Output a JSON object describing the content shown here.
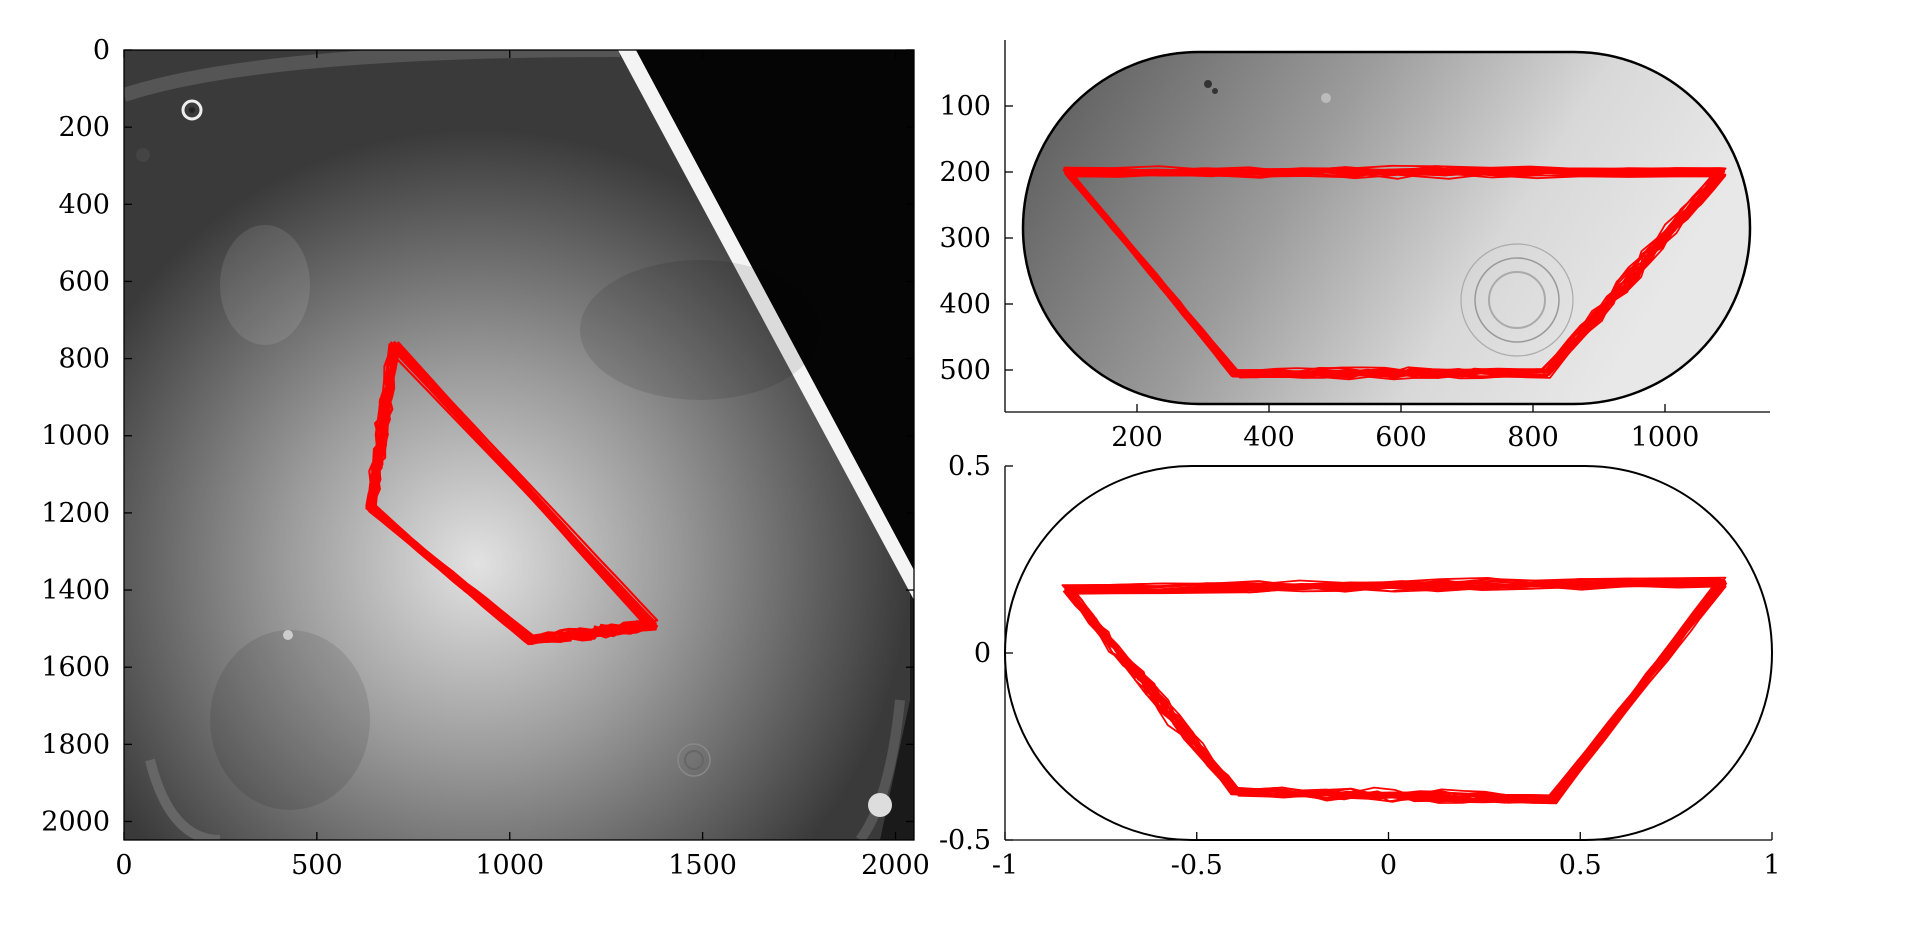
{
  "chart_data": [
    {
      "id": "left",
      "type": "image-with-trajectory",
      "xlim": [
        0,
        2048
      ],
      "ylim": [
        0,
        2048
      ],
      "y_inverted": true,
      "xticks": [
        0,
        500,
        1000,
        1500,
        2000
      ],
      "xtick_labels": [
        "0",
        "500",
        "1000",
        "1500",
        "2000"
      ],
      "yticks": [
        0,
        200,
        400,
        600,
        800,
        1000,
        1200,
        1400,
        1600,
        1800,
        2000
      ],
      "ytick_labels": [
        "0",
        "200",
        "400",
        "600",
        "800",
        "1000",
        "1200",
        "1400",
        "1600",
        "1800",
        "2000"
      ],
      "trajectory_color": "#ff0000",
      "trajectory_vertices": [
        [
          700,
          770
        ],
        [
          1370,
          1490
        ],
        [
          1050,
          1530
        ],
        [
          640,
          1190
        ]
      ],
      "loops": 22,
      "background": "grayscale camera frame of tilted stadium-shaped bath"
    },
    {
      "id": "top-right",
      "type": "image-with-trajectory",
      "xlim": [
        0,
        1160
      ],
      "ylim": [
        0,
        565
      ],
      "y_inverted": true,
      "xticks": [
        200,
        400,
        600,
        800,
        1000
      ],
      "xtick_labels": [
        "200",
        "400",
        "600",
        "800",
        "1000"
      ],
      "yticks": [
        100,
        200,
        300,
        400,
        500
      ],
      "ytick_labels": [
        "100",
        "200",
        "300",
        "400",
        "500"
      ],
      "trajectory_color": "#ff0000",
      "trajectory_vertices": [
        [
          95,
          200
        ],
        [
          1085,
          200
        ],
        [
          820,
          505
        ],
        [
          350,
          505
        ]
      ],
      "loops": 22,
      "background": "grayscale stadium-shaped bath"
    },
    {
      "id": "bottom-right",
      "type": "line",
      "xlim": [
        -1,
        1
      ],
      "ylim": [
        -0.5,
        0.5
      ],
      "xticks": [
        -1,
        -0.5,
        0,
        0.5,
        1
      ],
      "xtick_labels": [
        "-1",
        "-0.5",
        "0",
        "0.5",
        "1"
      ],
      "yticks": [
        -0.5,
        0,
        0.5
      ],
      "ytick_labels": [
        "-0.5",
        "0",
        "0.5"
      ],
      "boundary": {
        "shape": "stadium",
        "x_range": [
          -1,
          1
        ],
        "y_range": [
          -0.5,
          0.5
        ],
        "color": "#000000"
      },
      "trajectory_color": "#ff0000",
      "trajectory_vertices": [
        [
          -0.84,
          0.17
        ],
        [
          0.87,
          0.19
        ],
        [
          0.43,
          -0.39
        ],
        [
          -0.4,
          -0.37
        ]
      ],
      "loops": 22
    }
  ]
}
